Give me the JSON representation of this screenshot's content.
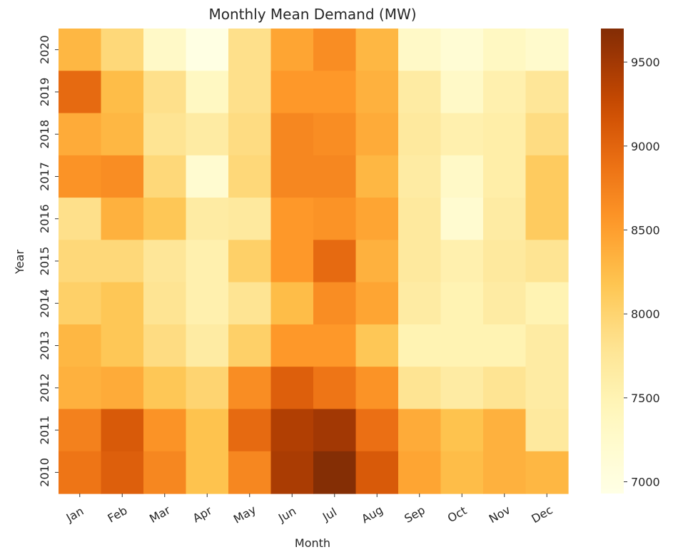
{
  "chart_data": {
    "type": "heatmap",
    "title": "Monthly Mean Demand (MW)",
    "xlabel": "Month",
    "ylabel": "Year",
    "x": [
      "Jan",
      "Feb",
      "Mar",
      "Apr",
      "May",
      "Jun",
      "Jul",
      "Aug",
      "Sep",
      "Oct",
      "Nov",
      "Dec"
    ],
    "y": [
      "2020",
      "2019",
      "2018",
      "2017",
      "2016",
      "2015",
      "2014",
      "2013",
      "2012",
      "2011",
      "2010"
    ],
    "values": [
      [
        8300,
        7950,
        7300,
        6960,
        7850,
        8450,
        8650,
        8300,
        7300,
        7150,
        7350,
        7250
      ],
      [
        8950,
        8250,
        7850,
        7350,
        7850,
        8550,
        8550,
        8350,
        7650,
        7300,
        7550,
        7750
      ],
      [
        8400,
        8300,
        7800,
        7650,
        7900,
        8700,
        8650,
        8400,
        7700,
        7550,
        7600,
        7900
      ],
      [
        8600,
        8650,
        7950,
        7200,
        7950,
        8700,
        8700,
        8300,
        7650,
        7300,
        7600,
        8100
      ],
      [
        7850,
        8350,
        8150,
        7650,
        7700,
        8550,
        8600,
        8450,
        7700,
        7200,
        7650,
        8100
      ],
      [
        7950,
        7950,
        7750,
        7550,
        8050,
        8550,
        8950,
        8350,
        7700,
        7550,
        7700,
        7800
      ],
      [
        8050,
        8150,
        7800,
        7550,
        7800,
        8250,
        8650,
        8450,
        7650,
        7500,
        7650,
        7500
      ],
      [
        8300,
        8150,
        7900,
        7650,
        8050,
        8550,
        8550,
        8150,
        7500,
        7500,
        7500,
        7650
      ],
      [
        8350,
        8400,
        8150,
        8000,
        8650,
        9050,
        8850,
        8600,
        7800,
        7650,
        7800,
        7650
      ],
      [
        8750,
        9100,
        8600,
        8200,
        8950,
        9400,
        9500,
        8900,
        8400,
        8200,
        8350,
        7700
      ],
      [
        8850,
        9050,
        8700,
        8200,
        8700,
        9450,
        9690,
        9100,
        8450,
        8250,
        8350,
        8300
      ]
    ],
    "colorbar": {
      "ticks": [
        "9500",
        "9000",
        "8500",
        "8000",
        "7500",
        "7000"
      ],
      "range": [
        6930,
        9700
      ],
      "colormap": "YlOrBr"
    },
    "grid": false
  }
}
